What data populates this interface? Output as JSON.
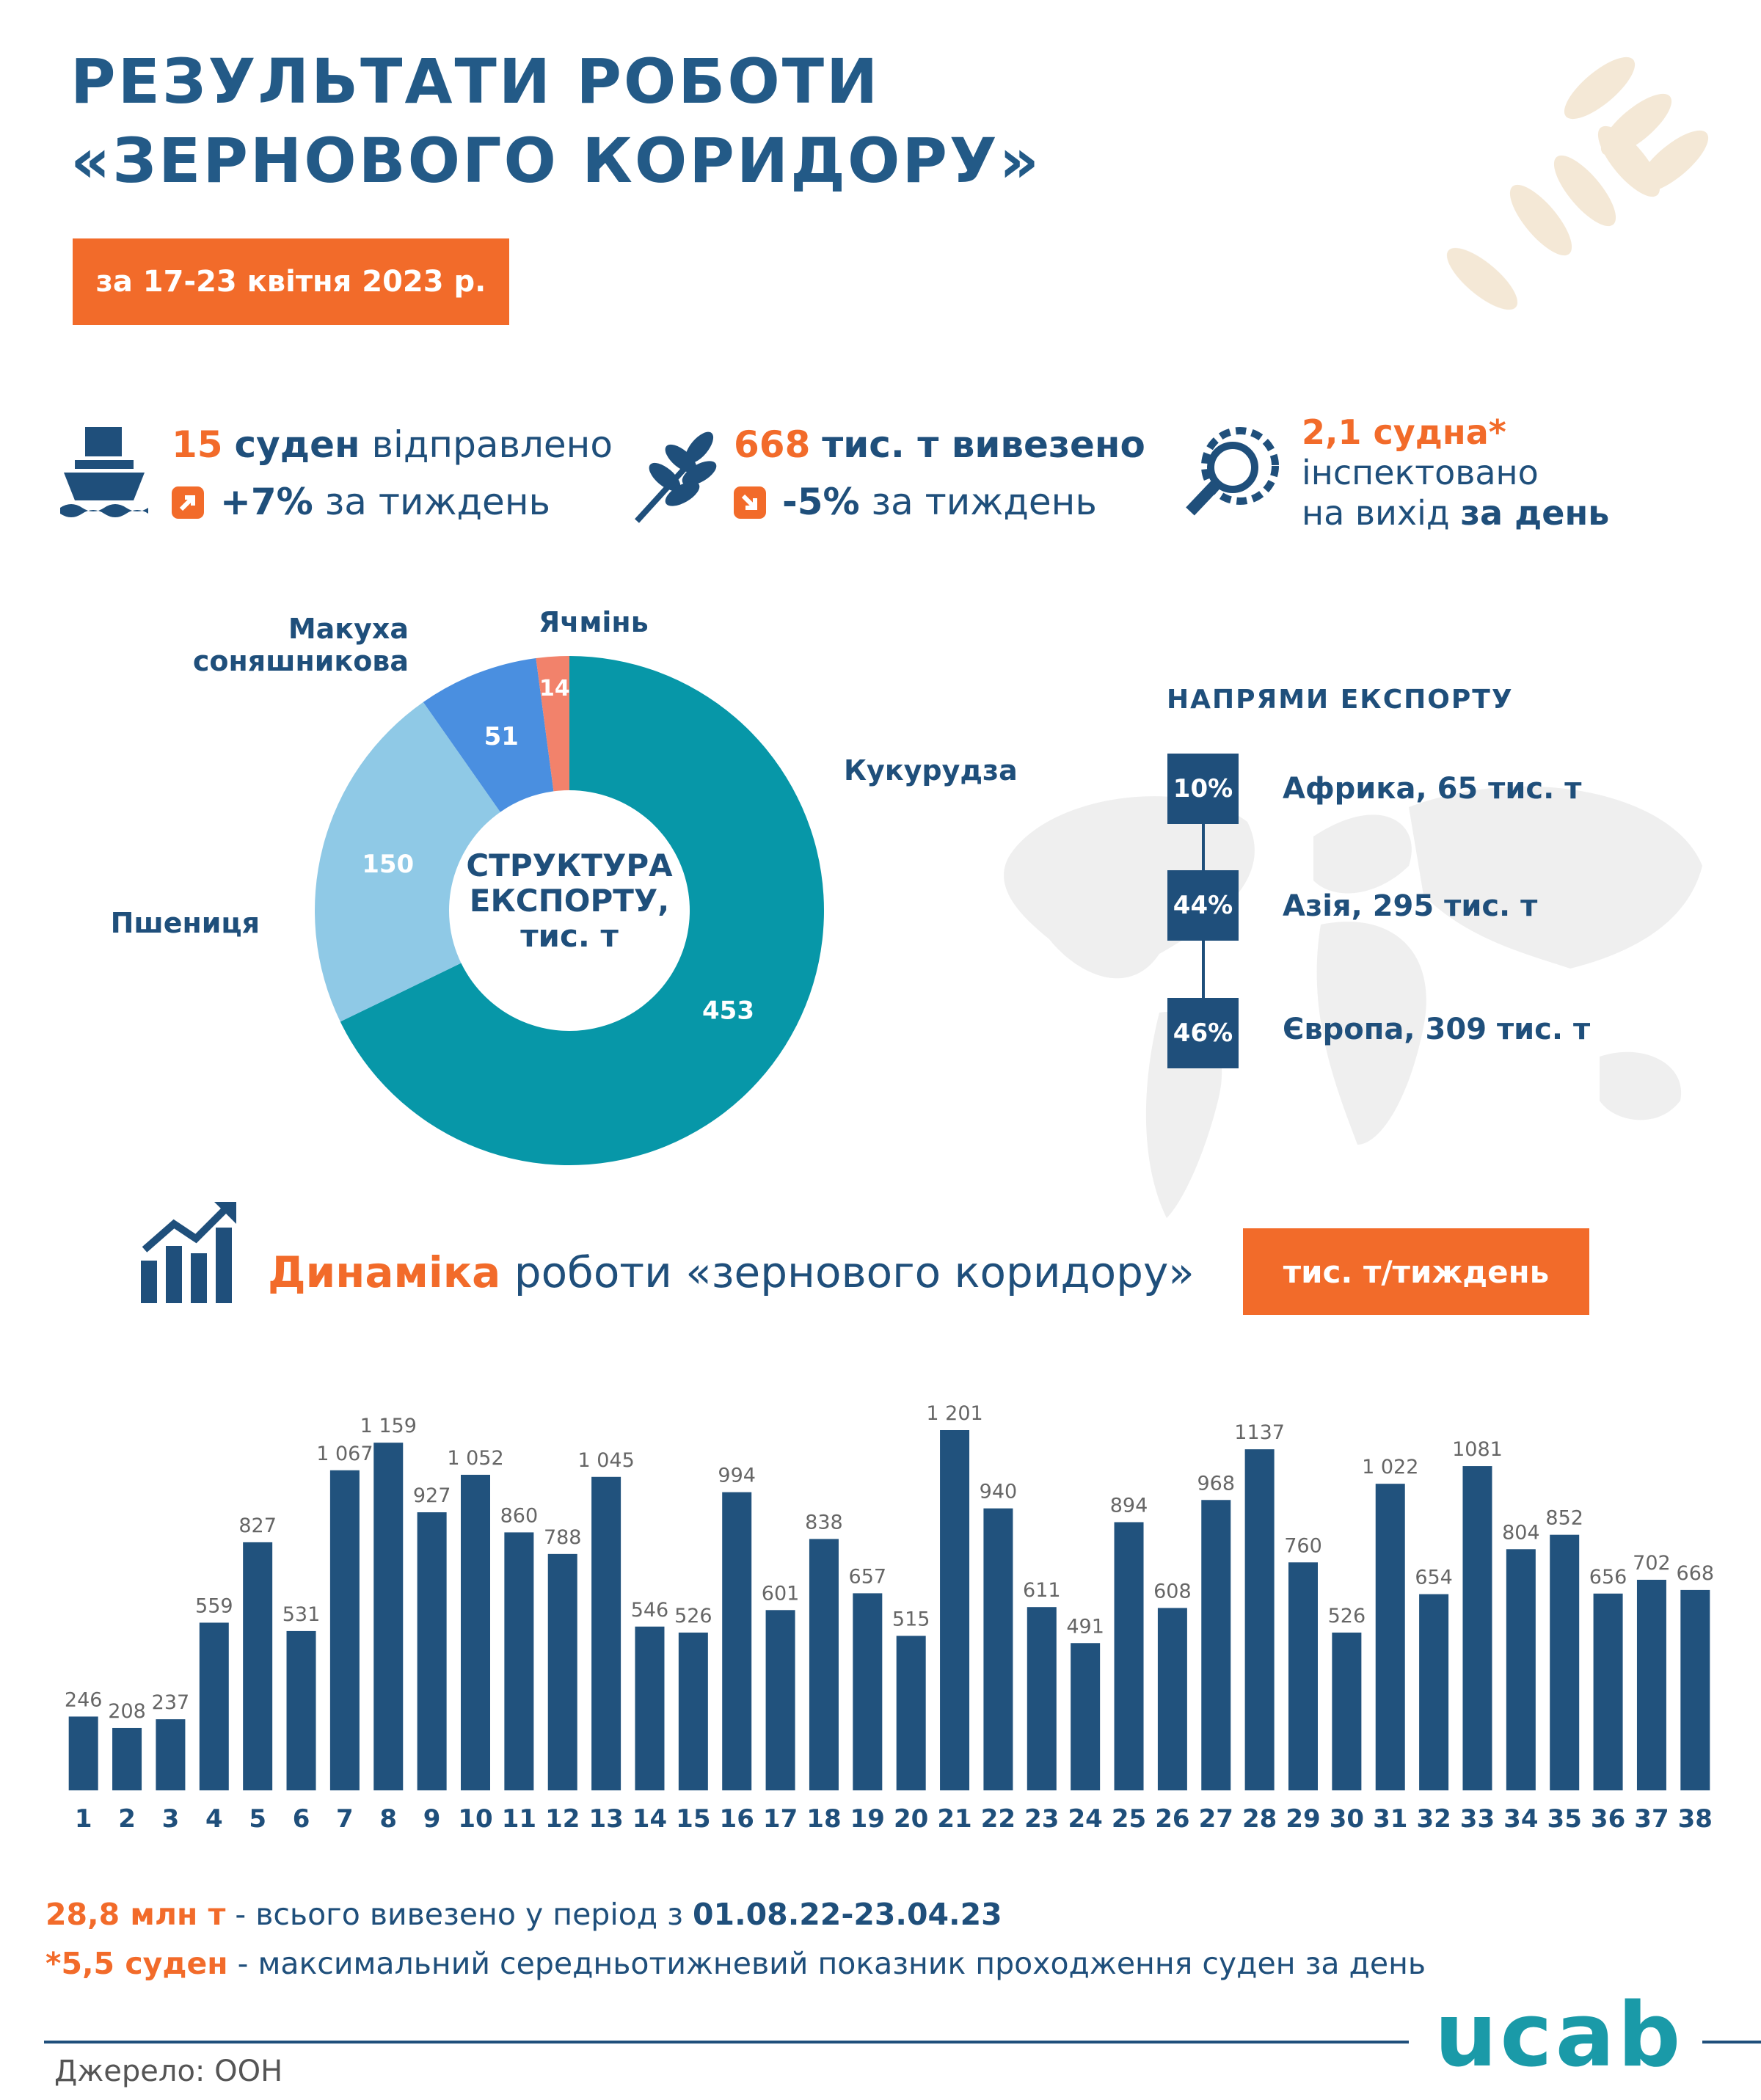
{
  "header": {
    "title_line1": "РЕЗУЛЬТАТИ РОБОТИ",
    "title_line2": "«ЗЕРНОВОГО КОРИДОРУ»",
    "period": "за 17-23 квітня 2023 р."
  },
  "stats": [
    {
      "number": "15",
      "unit": "суден",
      "text": "відправлено",
      "change": "+7%",
      "period": "за тиждень"
    },
    {
      "number": "668",
      "unit": "тис. т вивезено",
      "change": "-5%",
      "period": "за тиждень"
    },
    {
      "number": "2,1 судна*",
      "line2": "інспектовано",
      "line3": "на вихід",
      "line3_bold": "за день"
    }
  ],
  "export_directions": {
    "title": "НАПРЯМИ ЕКСПОРТУ",
    "items": [
      {
        "share": "10%",
        "text": "Африка, 65 тис. т"
      },
      {
        "share": "44%",
        "text": "Азія, 295 тис. т"
      },
      {
        "share": "46%",
        "text": "Європа, 309 тис. т"
      }
    ]
  },
  "dynamics": {
    "highlight": "Динаміка",
    "text": "роботи «зернового коридору»",
    "unit": "тис. т/тиждень"
  },
  "notes": [
    {
      "highlight": "28,8 млн т",
      "text": " - всього вивезено у період з ",
      "bold": "01.08.22-23.04.23"
    },
    {
      "highlight": "*5,5 суден",
      "text": " - максимальний середньотижневий показник проходження суден за день"
    }
  ],
  "source": "Джерело: ООН",
  "logo": "ucab",
  "chart_data": [
    {
      "type": "donut",
      "title": "СТРУКТУРА ЕКСПОРТУ, тис. т",
      "categories": [
        "Кукурудза",
        "Пшениця",
        "Макуха соняшникова",
        "Ячмінь"
      ],
      "values": [
        453,
        150,
        51,
        14
      ],
      "colors": [
        "#0797a8",
        "#8fc9e6",
        "#4a8fe0",
        "#f2826b"
      ]
    },
    {
      "type": "bar",
      "color": "#21527d",
      "categories": [
        "1",
        "2",
        "3",
        "4",
        "5",
        "6",
        "7",
        "8",
        "9",
        "10",
        "11",
        "12",
        "13",
        "14",
        "15",
        "16",
        "17",
        "18",
        "19",
        "20",
        "21",
        "22",
        "23",
        "24",
        "25",
        "26",
        "27",
        "28",
        "29",
        "30",
        "31",
        "32",
        "33",
        "34",
        "35",
        "36",
        "37",
        "38"
      ],
      "values": [
        246,
        208,
        237,
        559,
        827,
        531,
        1067,
        1159,
        927,
        1052,
        860,
        788,
        1045,
        546,
        526,
        994,
        601,
        838,
        657,
        515,
        1201,
        940,
        611,
        491,
        894,
        608,
        968,
        1137,
        760,
        526,
        1022,
        654,
        1081,
        804,
        852,
        656,
        702,
        668
      ],
      "value_labels": [
        "246",
        "208",
        "237",
        "559",
        "827",
        "531",
        "1 067",
        "1 159",
        "927",
        "1 052",
        "860",
        "788",
        "1 045",
        "546",
        "526",
        "994",
        "601",
        "838",
        "657",
        "515",
        "1 201",
        "940",
        "611",
        "491",
        "894",
        "608",
        "968",
        "1137",
        "760",
        "526",
        "1 022",
        "654",
        "1081",
        "804",
        "852",
        "656",
        "702",
        "668"
      ]
    }
  ]
}
